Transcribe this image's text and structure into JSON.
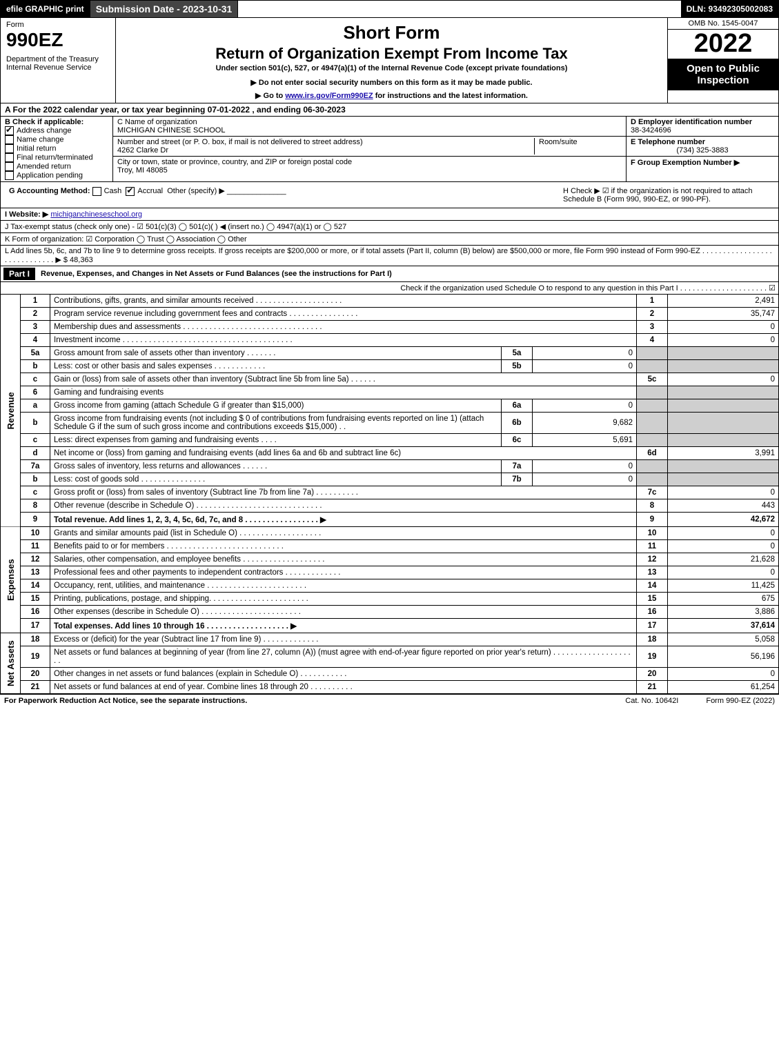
{
  "topbar": {
    "efile": "efile GRAPHIC print",
    "submission": "Submission Date - 2023-10-31",
    "dln": "DLN: 93492305002083"
  },
  "header": {
    "form_label": "Form",
    "form_number": "990EZ",
    "dept1": "Department of the Treasury",
    "dept2": "Internal Revenue Service",
    "short_form": "Short Form",
    "title": "Return of Organization Exempt From Income Tax",
    "subtitle": "Under section 501(c), 527, or 4947(a)(1) of the Internal Revenue Code (except private foundations)",
    "warn": "▶ Do not enter social security numbers on this form as it may be made public.",
    "goto_pre": "▶ Go to ",
    "goto_link": "www.irs.gov/Form990EZ",
    "goto_post": " for instructions and the latest information.",
    "omb": "OMB No. 1545-0047",
    "year": "2022",
    "open": "Open to Public Inspection"
  },
  "rowA": "A  For the 2022 calendar year, or tax year beginning 07-01-2022 , and ending 06-30-2023",
  "colB": {
    "label": "B  Check if applicable:",
    "items": [
      "Address change",
      "Name change",
      "Initial return",
      "Final return/terminated",
      "Amended return",
      "Application pending"
    ],
    "checked": [
      true,
      false,
      false,
      false,
      false,
      false
    ]
  },
  "colC": {
    "name_label": "C Name of organization",
    "name": "MICHIGAN CHINESE SCHOOL",
    "street_label": "Number and street (or P. O. box, if mail is not delivered to street address)",
    "room_label": "Room/suite",
    "street": "4262 Clarke Dr",
    "city_label": "City or town, state or province, country, and ZIP or foreign postal code",
    "city": "Troy, MI  48085"
  },
  "colD": {
    "ein_label": "D Employer identification number",
    "ein": "38-3424696",
    "tel_label": "E Telephone number",
    "tel": "(734) 325-3883",
    "group_label": "F Group Exemption Number  ▶"
  },
  "rowG": {
    "label": "G Accounting Method:",
    "cash": "Cash",
    "accrual": "Accrual",
    "other": "Other (specify) ▶"
  },
  "rowH": "H  Check ▶ ☑ if the organization is not required to attach Schedule B (Form 990, 990-EZ, or 990-PF).",
  "rowI": {
    "label": "I Website: ▶",
    "site": "michiganchineseschool.org"
  },
  "rowJ": "J Tax-exempt status (check only one) - ☑ 501(c)(3)  ◯ 501(c)(  ) ◀ (insert no.)  ◯ 4947(a)(1) or  ◯ 527",
  "rowK": "K Form of organization:  ☑ Corporation  ◯ Trust  ◯ Association  ◯ Other",
  "rowL": {
    "text": "L Add lines 5b, 6c, and 7b to line 9 to determine gross receipts. If gross receipts are $200,000 or more, or if total assets (Part II, column (B) below) are $500,000 or more, file Form 990 instead of Form 990-EZ . . . . . . . . . . . . . . . . . . . . . . . . . . . . . ▶ $",
    "amount": "48,363"
  },
  "part1": {
    "label": "Part I",
    "title": "Revenue, Expenses, and Changes in Net Assets or Fund Balances (see the instructions for Part I)",
    "sub": "Check if the organization used Schedule O to respond to any question in this Part I . . . . . . . . . . . . . . . . . . . . . ☑"
  },
  "section_labels": {
    "revenue": "Revenue",
    "expenses": "Expenses",
    "netassets": "Net Assets"
  },
  "lines": [
    {
      "n": "1",
      "desc": "Contributions, gifts, grants, and similar amounts received . . . . . . . . . . . . . . . . . . . .",
      "code": "1",
      "val": "2,491"
    },
    {
      "n": "2",
      "desc": "Program service revenue including government fees and contracts . . . . . . . . . . . . . . . .",
      "code": "2",
      "val": "35,747"
    },
    {
      "n": "3",
      "desc": "Membership dues and assessments . . . . . . . . . . . . . . . . . . . . . . . . . . . . . . . .",
      "code": "3",
      "val": "0"
    },
    {
      "n": "4",
      "desc": "Investment income . . . . . . . . . . . . . . . . . . . . . . . . . . . . . . . . . . . . . . .",
      "code": "4",
      "val": "0"
    },
    {
      "n": "5a",
      "desc": "Gross amount from sale of assets other than inventory . . . . . . .",
      "sub": "5a",
      "subval": "0",
      "shade": true
    },
    {
      "n": "b",
      "desc": "Less: cost or other basis and sales expenses . . . . . . . . . . . .",
      "sub": "5b",
      "subval": "0",
      "shade": true
    },
    {
      "n": "c",
      "desc": "Gain or (loss) from sale of assets other than inventory (Subtract line 5b from line 5a) . . . . . .",
      "code": "5c",
      "val": "0"
    },
    {
      "n": "6",
      "desc": "Gaming and fundraising events",
      "shade": true,
      "noval": true
    },
    {
      "n": "a",
      "desc": "Gross income from gaming (attach Schedule G if greater than $15,000)",
      "sub": "6a",
      "subval": "0",
      "shade": true
    },
    {
      "n": "b",
      "desc": "Gross income from fundraising events (not including $ 0            of contributions from fundraising events reported on line 1) (attach Schedule G if the sum of such gross income and contributions exceeds $15,000)   . .",
      "sub": "6b",
      "subval": "9,682",
      "shade": true
    },
    {
      "n": "c",
      "desc": "Less: direct expenses from gaming and fundraising events    . . . .",
      "sub": "6c",
      "subval": "5,691",
      "shade": true
    },
    {
      "n": "d",
      "desc": "Net income or (loss) from gaming and fundraising events (add lines 6a and 6b and subtract line 6c)",
      "code": "6d",
      "val": "3,991"
    },
    {
      "n": "7a",
      "desc": "Gross sales of inventory, less returns and allowances . . . . . .",
      "sub": "7a",
      "subval": "0",
      "shade": true
    },
    {
      "n": "b",
      "desc": "Less: cost of goods sold        . . . . . . . . . . . . . . .",
      "sub": "7b",
      "subval": "0",
      "shade": true
    },
    {
      "n": "c",
      "desc": "Gross profit or (loss) from sales of inventory (Subtract line 7b from line 7a) . . . . . . . . . .",
      "code": "7c",
      "val": "0"
    },
    {
      "n": "8",
      "desc": "Other revenue (describe in Schedule O) . . . . . . . . . . . . . . . . . . . . . . . . . . . . .",
      "code": "8",
      "val": "443"
    },
    {
      "n": "9",
      "desc": "Total revenue. Add lines 1, 2, 3, 4, 5c, 6d, 7c, and 8  . . . . . . . . . . . . . . . . .  ▶",
      "code": "9",
      "val": "42,672",
      "bold": true
    }
  ],
  "expenses": [
    {
      "n": "10",
      "desc": "Grants and similar amounts paid (list in Schedule O) . . . . . . . . . . . . . . . . . . .",
      "code": "10",
      "val": "0"
    },
    {
      "n": "11",
      "desc": "Benefits paid to or for members    . . . . . . . . . . . . . . . . . . . . . . . . . . .",
      "code": "11",
      "val": "0"
    },
    {
      "n": "12",
      "desc": "Salaries, other compensation, and employee benefits . . . . . . . . . . . . . . . . . . .",
      "code": "12",
      "val": "21,628"
    },
    {
      "n": "13",
      "desc": "Professional fees and other payments to independent contractors . . . . . . . . . . . . .",
      "code": "13",
      "val": "0"
    },
    {
      "n": "14",
      "desc": "Occupancy, rent, utilities, and maintenance . . . . . . . . . . . . . . . . . . . . . . .",
      "code": "14",
      "val": "11,425"
    },
    {
      "n": "15",
      "desc": "Printing, publications, postage, and shipping. . . . . . . . . . . . . . . . . . . . . . .",
      "code": "15",
      "val": "675"
    },
    {
      "n": "16",
      "desc": "Other expenses (describe in Schedule O)     . . . . . . . . . . . . . . . . . . . . . . .",
      "code": "16",
      "val": "3,886"
    },
    {
      "n": "17",
      "desc": "Total expenses. Add lines 10 through 16    . . . . . . . . . . . . . . . . . . .   ▶",
      "code": "17",
      "val": "37,614",
      "bold": true
    }
  ],
  "netassets": [
    {
      "n": "18",
      "desc": "Excess or (deficit) for the year (Subtract line 17 from line 9)     . . . . . . . . . . . . .",
      "code": "18",
      "val": "5,058"
    },
    {
      "n": "19",
      "desc": "Net assets or fund balances at beginning of year (from line 27, column (A)) (must agree with end-of-year figure reported on prior year's return) . . . . . . . . . . . . . . . . . . . .",
      "code": "19",
      "val": "56,196"
    },
    {
      "n": "20",
      "desc": "Other changes in net assets or fund balances (explain in Schedule O) . . . . . . . . . . .",
      "code": "20",
      "val": "0"
    },
    {
      "n": "21",
      "desc": "Net assets or fund balances at end of year. Combine lines 18 through 20 . . . . . . . . . .",
      "code": "21",
      "val": "61,254"
    }
  ],
  "footer": {
    "left": "For Paperwork Reduction Act Notice, see the separate instructions.",
    "center": "Cat. No. 10642I",
    "right": "Form 990-EZ (2022)"
  }
}
